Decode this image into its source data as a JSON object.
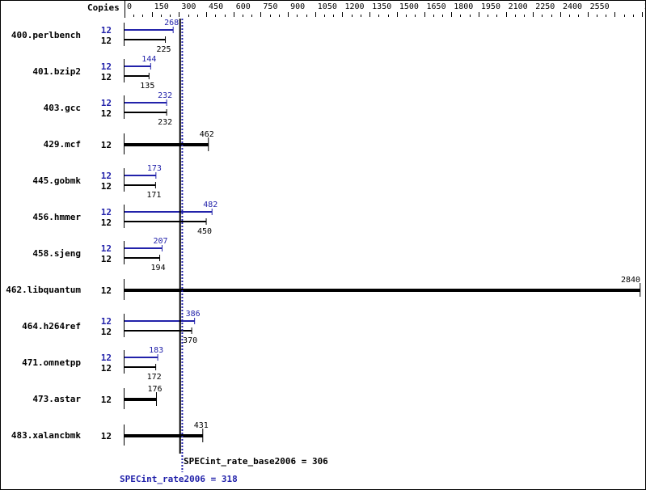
{
  "chart_data": {
    "type": "bar",
    "orientation": "horizontal",
    "xlabel": "Copies",
    "xlim": [
      0,
      2850
    ],
    "ticks": [
      0,
      150,
      300,
      450,
      600,
      750,
      900,
      1050,
      1200,
      1350,
      1500,
      1650,
      1800,
      1950,
      2100,
      2250,
      2400,
      2550,
      2850
    ],
    "colors": {
      "peak": "#2222aa",
      "base": "#000000"
    },
    "benchmarks": [
      {
        "name": "400.perlbench",
        "peak_copies": "12",
        "peak": 268,
        "base_copies": "12",
        "base": 225
      },
      {
        "name": "401.bzip2",
        "peak_copies": "12",
        "peak": 144,
        "base_copies": "12",
        "base": 135
      },
      {
        "name": "403.gcc",
        "peak_copies": "12",
        "peak": 232,
        "base_copies": "12",
        "base": 232
      },
      {
        "name": "429.mcf",
        "base_copies": "12",
        "base": 462
      },
      {
        "name": "445.gobmk",
        "peak_copies": "12",
        "peak": 173,
        "base_copies": "12",
        "base": 171
      },
      {
        "name": "456.hmmer",
        "peak_copies": "12",
        "peak": 482,
        "base_copies": "12",
        "base": 450
      },
      {
        "name": "458.sjeng",
        "peak_copies": "12",
        "peak": 207,
        "base_copies": "12",
        "base": 194
      },
      {
        "name": "462.libquantum",
        "base_copies": "12",
        "base": 2840
      },
      {
        "name": "464.h264ref",
        "peak_copies": "12",
        "peak": 386,
        "base_copies": "12",
        "base": 370
      },
      {
        "name": "471.omnetpp",
        "peak_copies": "12",
        "peak": 183,
        "base_copies": "12",
        "base": 172
      },
      {
        "name": "473.astar",
        "base_copies": "12",
        "base": 176
      },
      {
        "name": "483.xalancbmk",
        "base_copies": "12",
        "base": 431
      }
    ],
    "base_metric": {
      "label": "SPECint_rate_base2006 = 306",
      "value": 306
    },
    "peak_metric": {
      "label": "SPECint_rate2006 = 318",
      "value": 318
    }
  }
}
